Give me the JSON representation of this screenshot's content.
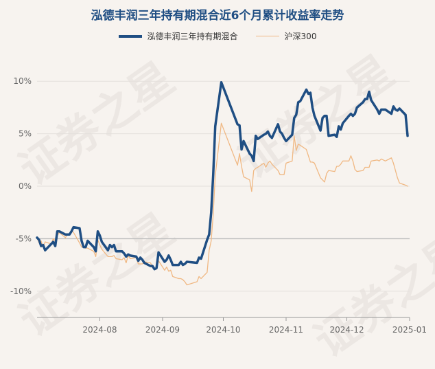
{
  "chart_data": {
    "type": "line",
    "title": "泓德丰润三年持有期混合近6个月累计收益率走势",
    "yticks": [
      "10%",
      "5%",
      "0%",
      "-5%",
      "-10%"
    ],
    "ytick_values": [
      10,
      5,
      0,
      -5,
      -10
    ],
    "ylim": [
      -12.5,
      12.5
    ],
    "xticks": [
      {
        "label": "2024-08",
        "date": "2024-08-01"
      },
      {
        "label": "2024-09",
        "date": "2024-09-01"
      },
      {
        "label": "2024-10",
        "date": "2024-10-01"
      },
      {
        "label": "2024-11",
        "date": "2024-11-01"
      },
      {
        "label": "2024-12",
        "date": "2024-12-01"
      },
      {
        "label": "2025-01",
        "date": "2025-01-01"
      }
    ],
    "xlim": [
      "2024-07-01",
      "2025-01-01"
    ],
    "grid": "horizontal",
    "legend_position": "top-center",
    "series": [
      {
        "name": "泓德丰润三年持有期混合",
        "color": "#1f4e83",
        "points": [
          [
            "2024-07-01",
            -4.9
          ],
          [
            "2024-07-02",
            -5.1
          ],
          [
            "2024-07-03",
            -5.7
          ],
          [
            "2024-07-04",
            -5.6
          ],
          [
            "2024-07-05",
            -6.1
          ],
          [
            "2024-07-08",
            -5.5
          ],
          [
            "2024-07-09",
            -5.3
          ],
          [
            "2024-07-10",
            -5.7
          ],
          [
            "2024-07-11",
            -4.3
          ],
          [
            "2024-07-12",
            -4.3
          ],
          [
            "2024-07-15",
            -4.6
          ],
          [
            "2024-07-16",
            -4.6
          ],
          [
            "2024-07-17",
            -4.6
          ],
          [
            "2024-07-18",
            -4.3
          ],
          [
            "2024-07-19",
            -3.9
          ],
          [
            "2024-07-22",
            -4.0
          ],
          [
            "2024-07-23",
            -5.2
          ],
          [
            "2024-07-24",
            -5.8
          ],
          [
            "2024-07-25",
            -5.8
          ],
          [
            "2024-07-26",
            -5.2
          ],
          [
            "2024-07-29",
            -5.8
          ],
          [
            "2024-07-30",
            -6.2
          ],
          [
            "2024-07-31",
            -4.3
          ],
          [
            "2024-08-01",
            -4.7
          ],
          [
            "2024-08-02",
            -5.3
          ],
          [
            "2024-08-05",
            -6.1
          ],
          [
            "2024-08-06",
            -5.6
          ],
          [
            "2024-08-07",
            -5.8
          ],
          [
            "2024-08-08",
            -5.6
          ],
          [
            "2024-08-09",
            -6.2
          ],
          [
            "2024-08-12",
            -6.2
          ],
          [
            "2024-08-13",
            -6.4
          ],
          [
            "2024-08-14",
            -6.7
          ],
          [
            "2024-08-15",
            -6.5
          ],
          [
            "2024-08-16",
            -6.6
          ],
          [
            "2024-08-19",
            -6.7
          ],
          [
            "2024-08-20",
            -7.1
          ],
          [
            "2024-08-21",
            -6.8
          ],
          [
            "2024-08-22",
            -7.0
          ],
          [
            "2024-08-23",
            -7.3
          ],
          [
            "2024-08-26",
            -7.6
          ],
          [
            "2024-08-27",
            -7.6
          ],
          [
            "2024-08-28",
            -7.9
          ],
          [
            "2024-08-29",
            -7.8
          ],
          [
            "2024-08-30",
            -6.3
          ],
          [
            "2024-09-02",
            -7.2
          ],
          [
            "2024-09-03",
            -7.0
          ],
          [
            "2024-09-04",
            -6.6
          ],
          [
            "2024-09-05",
            -7.0
          ],
          [
            "2024-09-06",
            -7.5
          ],
          [
            "2024-09-09",
            -7.5
          ],
          [
            "2024-09-10",
            -7.2
          ],
          [
            "2024-09-11",
            -7.5
          ],
          [
            "2024-09-12",
            -7.4
          ],
          [
            "2024-09-13",
            -7.2
          ],
          [
            "2024-09-18",
            -7.3
          ],
          [
            "2024-09-19",
            -6.8
          ],
          [
            "2024-09-20",
            -6.9
          ],
          [
            "2024-09-23",
            -5.1
          ],
          [
            "2024-09-24",
            -4.6
          ],
          [
            "2024-09-25",
            -2.5
          ],
          [
            "2024-09-26",
            1.1
          ],
          [
            "2024-09-27",
            5.7
          ],
          [
            "2024-09-30",
            9.9
          ],
          [
            "2024-10-08",
            5.9
          ],
          [
            "2024-10-09",
            5.8
          ],
          [
            "2024-10-10",
            3.5
          ],
          [
            "2024-10-11",
            4.3
          ],
          [
            "2024-10-14",
            3.1
          ],
          [
            "2024-10-15",
            2.9
          ],
          [
            "2024-10-16",
            2.4
          ],
          [
            "2024-10-17",
            4.8
          ],
          [
            "2024-10-18",
            4.5
          ],
          [
            "2024-10-21",
            4.9
          ],
          [
            "2024-10-22",
            5.0
          ],
          [
            "2024-10-23",
            5.2
          ],
          [
            "2024-10-24",
            4.8
          ],
          [
            "2024-10-25",
            4.6
          ],
          [
            "2024-10-28",
            5.9
          ],
          [
            "2024-10-29",
            5.2
          ],
          [
            "2024-10-30",
            5.0
          ],
          [
            "2024-10-31",
            4.6
          ],
          [
            "2024-11-01",
            4.3
          ],
          [
            "2024-11-04",
            4.9
          ],
          [
            "2024-11-05",
            6.5
          ],
          [
            "2024-11-06",
            6.8
          ],
          [
            "2024-11-07",
            8.0
          ],
          [
            "2024-11-08",
            8.1
          ],
          [
            "2024-11-11",
            9.2
          ],
          [
            "2024-11-12",
            8.8
          ],
          [
            "2024-11-13",
            8.9
          ],
          [
            "2024-11-14",
            7.5
          ],
          [
            "2024-11-15",
            6.7
          ],
          [
            "2024-11-18",
            5.3
          ],
          [
            "2024-11-19",
            6.5
          ],
          [
            "2024-11-20",
            6.7
          ],
          [
            "2024-11-21",
            6.7
          ],
          [
            "2024-11-22",
            4.8
          ],
          [
            "2024-11-25",
            4.9
          ],
          [
            "2024-11-26",
            4.7
          ],
          [
            "2024-11-27",
            5.7
          ],
          [
            "2024-11-28",
            5.4
          ],
          [
            "2024-11-29",
            6.0
          ],
          [
            "2024-12-02",
            6.7
          ],
          [
            "2024-12-03",
            6.9
          ],
          [
            "2024-12-04",
            6.7
          ],
          [
            "2024-12-05",
            6.9
          ],
          [
            "2024-12-06",
            7.5
          ],
          [
            "2024-12-09",
            8.0
          ],
          [
            "2024-12-10",
            8.3
          ],
          [
            "2024-12-11",
            8.3
          ],
          [
            "2024-12-12",
            9.0
          ],
          [
            "2024-12-13",
            8.2
          ],
          [
            "2024-12-16",
            7.3
          ],
          [
            "2024-12-17",
            6.9
          ],
          [
            "2024-12-18",
            7.3
          ],
          [
            "2024-12-19",
            7.3
          ],
          [
            "2024-12-20",
            7.3
          ],
          [
            "2024-12-23",
            6.9
          ],
          [
            "2024-12-24",
            7.6
          ],
          [
            "2024-12-25",
            7.3
          ],
          [
            "2024-12-26",
            7.2
          ],
          [
            "2024-12-27",
            7.4
          ],
          [
            "2024-12-30",
            6.8
          ],
          [
            "2024-12-31",
            4.8
          ]
        ]
      },
      {
        "name": "沪深300",
        "color": "#f0b883",
        "points": [
          [
            "2024-07-01",
            -4.9
          ],
          [
            "2024-07-02",
            -5.4
          ],
          [
            "2024-07-03",
            -5.2
          ],
          [
            "2024-07-04",
            -5.8
          ],
          [
            "2024-07-05",
            -5.3
          ],
          [
            "2024-07-08",
            -5.5
          ],
          [
            "2024-07-09",
            -5.0
          ],
          [
            "2024-07-10",
            -5.2
          ],
          [
            "2024-07-11",
            -4.7
          ],
          [
            "2024-07-12",
            -4.4
          ],
          [
            "2024-07-15",
            -4.9
          ],
          [
            "2024-07-16",
            -4.6
          ],
          [
            "2024-07-17",
            -4.6
          ],
          [
            "2024-07-18",
            -4.2
          ],
          [
            "2024-07-19",
            -4.4
          ],
          [
            "2024-07-22",
            -5.4
          ],
          [
            "2024-07-23",
            -5.8
          ],
          [
            "2024-07-24",
            -5.8
          ],
          [
            "2024-07-25",
            -5.9
          ],
          [
            "2024-07-26",
            -5.9
          ],
          [
            "2024-07-29",
            -6.2
          ],
          [
            "2024-07-30",
            -6.7
          ],
          [
            "2024-07-31",
            -5.1
          ],
          [
            "2024-08-01",
            -5.6
          ],
          [
            "2024-08-02",
            -6.0
          ],
          [
            "2024-08-05",
            -6.7
          ],
          [
            "2024-08-06",
            -6.7
          ],
          [
            "2024-08-07",
            -6.7
          ],
          [
            "2024-08-08",
            -6.6
          ],
          [
            "2024-08-09",
            -6.9
          ],
          [
            "2024-08-12",
            -7.0
          ],
          [
            "2024-08-13",
            -6.8
          ],
          [
            "2024-08-14",
            -7.3
          ],
          [
            "2024-08-15",
            -6.6
          ],
          [
            "2024-08-16",
            -6.9
          ],
          [
            "2024-08-19",
            -6.8
          ],
          [
            "2024-08-20",
            -7.4
          ],
          [
            "2024-08-21",
            -7.4
          ],
          [
            "2024-08-22",
            -7.4
          ],
          [
            "2024-08-23",
            -7.2
          ],
          [
            "2024-08-26",
            -7.3
          ],
          [
            "2024-08-27",
            -7.6
          ],
          [
            "2024-08-28",
            -7.9
          ],
          [
            "2024-08-29",
            -7.9
          ],
          [
            "2024-08-30",
            -7.1
          ],
          [
            "2024-09-02",
            -8.0
          ],
          [
            "2024-09-03",
            -7.7
          ],
          [
            "2024-09-04",
            -8.1
          ],
          [
            "2024-09-05",
            -8.0
          ],
          [
            "2024-09-06",
            -8.6
          ],
          [
            "2024-09-09",
            -8.8
          ],
          [
            "2024-09-10",
            -8.8
          ],
          [
            "2024-09-11",
            -8.9
          ],
          [
            "2024-09-12",
            -9.1
          ],
          [
            "2024-09-13",
            -9.4
          ],
          [
            "2024-09-18",
            -9.1
          ],
          [
            "2024-09-19",
            -8.6
          ],
          [
            "2024-09-20",
            -8.8
          ],
          [
            "2024-09-23",
            -8.2
          ],
          [
            "2024-09-24",
            -6.1
          ],
          [
            "2024-09-25",
            -5.2
          ],
          [
            "2024-09-26",
            -2.7
          ],
          [
            "2024-09-27",
            1.0
          ],
          [
            "2024-09-30",
            6.0
          ],
          [
            "2024-10-08",
            2.0
          ],
          [
            "2024-10-09",
            3.1
          ],
          [
            "2024-10-10",
            1.9
          ],
          [
            "2024-10-11",
            0.9
          ],
          [
            "2024-10-14",
            0.6
          ],
          [
            "2024-10-15",
            -0.5
          ],
          [
            "2024-10-16",
            1.5
          ],
          [
            "2024-10-17",
            1.7
          ],
          [
            "2024-10-18",
            1.8
          ],
          [
            "2024-10-21",
            2.2
          ],
          [
            "2024-10-22",
            1.8
          ],
          [
            "2024-10-23",
            2.2
          ],
          [
            "2024-10-24",
            2.4
          ],
          [
            "2024-10-25",
            2.1
          ],
          [
            "2024-10-28",
            1.5
          ],
          [
            "2024-10-29",
            1.1
          ],
          [
            "2024-10-30",
            1.1
          ],
          [
            "2024-10-31",
            1.1
          ],
          [
            "2024-11-01",
            2.2
          ],
          [
            "2024-11-04",
            2.4
          ],
          [
            "2024-11-05",
            4.8
          ],
          [
            "2024-11-06",
            3.4
          ],
          [
            "2024-11-07",
            4.0
          ],
          [
            "2024-11-08",
            3.9
          ],
          [
            "2024-11-11",
            3.5
          ],
          [
            "2024-11-12",
            2.9
          ],
          [
            "2024-11-13",
            2.3
          ],
          [
            "2024-11-14",
            2.3
          ],
          [
            "2024-11-15",
            2.2
          ],
          [
            "2024-11-18",
            0.8
          ],
          [
            "2024-11-19",
            0.6
          ],
          [
            "2024-11-20",
            0.4
          ],
          [
            "2024-11-21",
            1.2
          ],
          [
            "2024-11-22",
            1.5
          ],
          [
            "2024-11-25",
            1.4
          ],
          [
            "2024-11-26",
            1.9
          ],
          [
            "2024-11-27",
            1.9
          ],
          [
            "2024-11-28",
            2.1
          ],
          [
            "2024-11-29",
            2.4
          ],
          [
            "2024-12-02",
            2.4
          ],
          [
            "2024-12-03",
            2.9
          ],
          [
            "2024-12-04",
            2.4
          ],
          [
            "2024-12-05",
            1.6
          ],
          [
            "2024-12-06",
            1.4
          ],
          [
            "2024-12-09",
            1.5
          ],
          [
            "2024-12-10",
            1.8
          ],
          [
            "2024-12-11",
            1.8
          ],
          [
            "2024-12-12",
            1.8
          ],
          [
            "2024-12-13",
            2.4
          ],
          [
            "2024-12-16",
            2.5
          ],
          [
            "2024-12-17",
            2.4
          ],
          [
            "2024-12-18",
            2.6
          ],
          [
            "2024-12-19",
            2.5
          ],
          [
            "2024-12-20",
            2.4
          ],
          [
            "2024-12-23",
            2.7
          ],
          [
            "2024-12-24",
            2.2
          ],
          [
            "2024-12-25",
            1.5
          ],
          [
            "2024-12-26",
            0.8
          ],
          [
            "2024-12-27",
            0.3
          ],
          [
            "2024-12-30",
            0.1
          ],
          [
            "2024-12-31",
            0.0
          ]
        ]
      }
    ]
  },
  "watermark": "证券之星"
}
